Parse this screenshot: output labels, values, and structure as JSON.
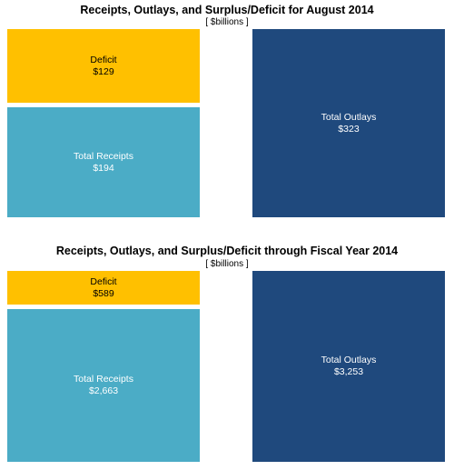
{
  "chart_data": [
    {
      "type": "bar",
      "title": "Receipts, Outlays, and Surplus/Deficit for August 2014",
      "subtitle": "[ $billions ]",
      "categories": [
        "Total Receipts",
        "Deficit",
        "Total Outlays"
      ],
      "series": [
        {
          "name": "Total Receipts",
          "value": 194,
          "display": "$194",
          "color": "#4BACC6"
        },
        {
          "name": "Deficit",
          "value": 129,
          "display": "$129",
          "color": "#FFC000"
        },
        {
          "name": "Total Outlays",
          "value": 323,
          "display": "$323",
          "color": "#1F497D"
        }
      ]
    },
    {
      "type": "bar",
      "title": "Receipts, Outlays, and Surplus/Deficit through Fiscal Year 2014",
      "subtitle": "[ $billions ]",
      "categories": [
        "Total Receipts",
        "Deficit",
        "Total Outlays"
      ],
      "series": [
        {
          "name": "Total Receipts",
          "value": 2663,
          "display": "$2,663",
          "color": "#4BACC6"
        },
        {
          "name": "Deficit",
          "value": 589,
          "display": "$589",
          "color": "#FFC000"
        },
        {
          "name": "Total Outlays",
          "value": 3253,
          "display": "$3,253",
          "color": "#1F497D"
        }
      ]
    }
  ]
}
